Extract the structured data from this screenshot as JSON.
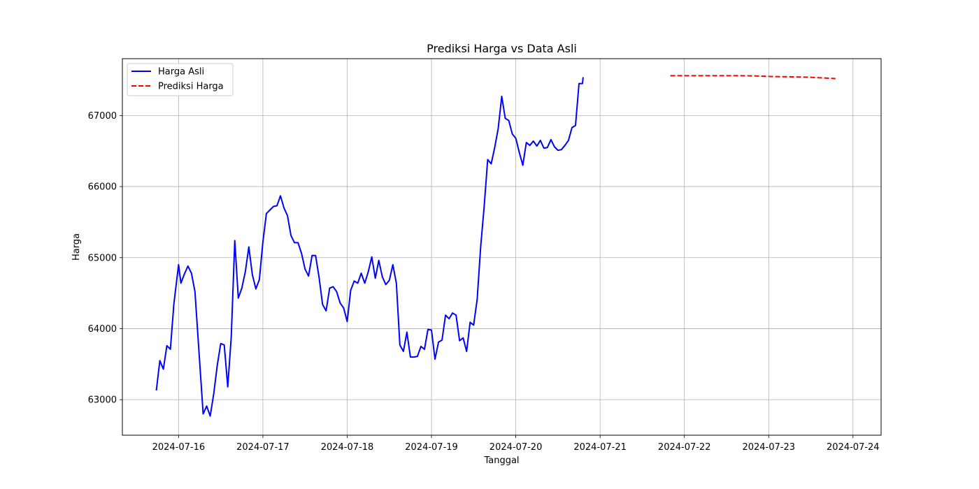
{
  "chart_data": {
    "type": "line",
    "title": "Prediksi Harga vs Data Asli",
    "xlabel": "Tanggal",
    "ylabel": "Harga",
    "x_axis": {
      "type": "date",
      "xlim": [
        "2024-07-15 08:00",
        "2024-07-24 08:00"
      ],
      "tick_labels": [
        "2024-07-16",
        "2024-07-17",
        "2024-07-18",
        "2024-07-19",
        "2024-07-20",
        "2024-07-21",
        "2024-07-22",
        "2024-07-23",
        "2024-07-24"
      ]
    },
    "y_axis": {
      "ylim": [
        62500,
        67800
      ],
      "ticks": [
        63000,
        64000,
        65000,
        66000,
        67000
      ],
      "tick_labels": [
        "63000",
        "64000",
        "65000",
        "66000",
        "67000"
      ]
    },
    "grid": true,
    "legend": {
      "placement": "top-left"
    },
    "series": [
      {
        "name": "Harga Asli",
        "color": "#0000ff",
        "style": "solid",
        "points": [
          [
            "2024-07-15 17:40",
            63130
          ],
          [
            "2024-07-15 18:40",
            63550
          ],
          [
            "2024-07-15 19:40",
            63430
          ],
          [
            "2024-07-15 20:40",
            63760
          ],
          [
            "2024-07-15 21:40",
            63710
          ],
          [
            "2024-07-15 22:40",
            64350
          ],
          [
            "2024-07-16 00:00",
            64900
          ],
          [
            "2024-07-16 00:40",
            64640
          ],
          [
            "2024-07-16 01:40",
            64770
          ],
          [
            "2024-07-16 02:40",
            64880
          ],
          [
            "2024-07-16 03:40",
            64780
          ],
          [
            "2024-07-16 04:40",
            64520
          ],
          [
            "2024-07-16 05:40",
            63780
          ],
          [
            "2024-07-16 07:00",
            62800
          ],
          [
            "2024-07-16 08:00",
            62910
          ],
          [
            "2024-07-16 09:00",
            62770
          ],
          [
            "2024-07-16 10:00",
            63080
          ],
          [
            "2024-07-16 11:00",
            63480
          ],
          [
            "2024-07-16 12:00",
            63790
          ],
          [
            "2024-07-16 13:00",
            63770
          ],
          [
            "2024-07-16 14:00",
            63180
          ],
          [
            "2024-07-16 15:00",
            63890
          ],
          [
            "2024-07-16 16:00",
            65240
          ],
          [
            "2024-07-16 17:00",
            64430
          ],
          [
            "2024-07-16 18:00",
            64570
          ],
          [
            "2024-07-16 19:00",
            64800
          ],
          [
            "2024-07-16 20:00",
            65150
          ],
          [
            "2024-07-16 21:00",
            64760
          ],
          [
            "2024-07-16 22:00",
            64560
          ],
          [
            "2024-07-16 23:00",
            64690
          ],
          [
            "2024-07-17 00:00",
            65220
          ],
          [
            "2024-07-17 01:00",
            65620
          ],
          [
            "2024-07-17 02:00",
            65670
          ],
          [
            "2024-07-17 03:00",
            65720
          ],
          [
            "2024-07-17 04:00",
            65730
          ],
          [
            "2024-07-17 05:00",
            65870
          ],
          [
            "2024-07-17 06:00",
            65700
          ],
          [
            "2024-07-17 07:00",
            65590
          ],
          [
            "2024-07-17 08:00",
            65310
          ],
          [
            "2024-07-17 09:00",
            65210
          ],
          [
            "2024-07-17 10:00",
            65210
          ],
          [
            "2024-07-17 11:00",
            65060
          ],
          [
            "2024-07-17 12:00",
            64840
          ],
          [
            "2024-07-17 13:00",
            64740
          ],
          [
            "2024-07-17 14:00",
            65030
          ],
          [
            "2024-07-17 15:00",
            65030
          ],
          [
            "2024-07-17 16:00",
            64720
          ],
          [
            "2024-07-17 17:00",
            64340
          ],
          [
            "2024-07-17 18:00",
            64250
          ],
          [
            "2024-07-17 19:00",
            64570
          ],
          [
            "2024-07-17 20:00",
            64590
          ],
          [
            "2024-07-17 21:00",
            64520
          ],
          [
            "2024-07-17 22:00",
            64360
          ],
          [
            "2024-07-17 23:00",
            64290
          ],
          [
            "2024-07-18 00:00",
            64100
          ],
          [
            "2024-07-18 01:00",
            64540
          ],
          [
            "2024-07-18 02:00",
            64670
          ],
          [
            "2024-07-18 03:00",
            64640
          ],
          [
            "2024-07-18 04:00",
            64780
          ],
          [
            "2024-07-18 05:00",
            64640
          ],
          [
            "2024-07-18 06:00",
            64800
          ],
          [
            "2024-07-18 07:00",
            65010
          ],
          [
            "2024-07-18 08:00",
            64710
          ],
          [
            "2024-07-18 09:00",
            64960
          ],
          [
            "2024-07-18 10:00",
            64730
          ],
          [
            "2024-07-18 11:00",
            64620
          ],
          [
            "2024-07-18 12:00",
            64680
          ],
          [
            "2024-07-18 13:00",
            64900
          ],
          [
            "2024-07-18 14:00",
            64640
          ],
          [
            "2024-07-18 15:00",
            63770
          ],
          [
            "2024-07-18 16:00",
            63680
          ],
          [
            "2024-07-18 17:00",
            63950
          ],
          [
            "2024-07-18 18:00",
            63600
          ],
          [
            "2024-07-18 19:00",
            63600
          ],
          [
            "2024-07-18 20:00",
            63610
          ],
          [
            "2024-07-18 21:00",
            63750
          ],
          [
            "2024-07-18 22:00",
            63710
          ],
          [
            "2024-07-18 23:00",
            63990
          ],
          [
            "2024-07-19 00:00",
            63980
          ],
          [
            "2024-07-19 01:00",
            63570
          ],
          [
            "2024-07-19 02:00",
            63810
          ],
          [
            "2024-07-19 03:00",
            63840
          ],
          [
            "2024-07-19 04:00",
            64190
          ],
          [
            "2024-07-19 05:00",
            64140
          ],
          [
            "2024-07-19 06:00",
            64220
          ],
          [
            "2024-07-19 07:00",
            64190
          ],
          [
            "2024-07-19 08:00",
            63830
          ],
          [
            "2024-07-19 09:00",
            63870
          ],
          [
            "2024-07-19 10:00",
            63680
          ],
          [
            "2024-07-19 11:00",
            64090
          ],
          [
            "2024-07-19 12:00",
            64050
          ],
          [
            "2024-07-19 13:00",
            64410
          ],
          [
            "2024-07-19 14:00",
            65150
          ],
          [
            "2024-07-19 15:00",
            65720
          ],
          [
            "2024-07-19 16:00",
            66380
          ],
          [
            "2024-07-19 17:00",
            66320
          ],
          [
            "2024-07-19 18:00",
            66550
          ],
          [
            "2024-07-19 19:00",
            66820
          ],
          [
            "2024-07-19 20:00",
            67270
          ],
          [
            "2024-07-19 21:00",
            66960
          ],
          [
            "2024-07-19 22:00",
            66930
          ],
          [
            "2024-07-19 23:00",
            66740
          ],
          [
            "2024-07-20 00:00",
            66680
          ],
          [
            "2024-07-20 01:00",
            66480
          ],
          [
            "2024-07-20 02:00",
            66300
          ],
          [
            "2024-07-20 03:00",
            66620
          ],
          [
            "2024-07-20 04:00",
            66580
          ],
          [
            "2024-07-20 05:00",
            66640
          ],
          [
            "2024-07-20 06:00",
            66570
          ],
          [
            "2024-07-20 07:00",
            66650
          ],
          [
            "2024-07-20 08:00",
            66540
          ],
          [
            "2024-07-20 09:00",
            66550
          ],
          [
            "2024-07-20 10:00",
            66660
          ],
          [
            "2024-07-20 11:00",
            66560
          ],
          [
            "2024-07-20 12:00",
            66510
          ],
          [
            "2024-07-20 13:00",
            66520
          ],
          [
            "2024-07-20 14:00",
            66580
          ],
          [
            "2024-07-20 15:00",
            66650
          ],
          [
            "2024-07-20 16:00",
            66830
          ],
          [
            "2024-07-20 17:00",
            66860
          ],
          [
            "2024-07-20 18:00",
            67450
          ],
          [
            "2024-07-20 19:00",
            67450
          ],
          [
            "2024-07-20 19:10",
            67540
          ]
        ]
      },
      {
        "name": "Prediksi Harga",
        "color": "#ff0000",
        "style": "dashed",
        "points": [
          [
            "2024-07-21 20:00",
            67560
          ],
          [
            "2024-07-22 06:00",
            67560
          ],
          [
            "2024-07-22 16:00",
            67560
          ],
          [
            "2024-07-22 20:00",
            67558
          ],
          [
            "2024-07-23 00:00",
            67550
          ],
          [
            "2024-07-23 06:00",
            67545
          ],
          [
            "2024-07-23 12:00",
            67538
          ],
          [
            "2024-07-23 19:00",
            67520
          ]
        ]
      }
    ]
  }
}
